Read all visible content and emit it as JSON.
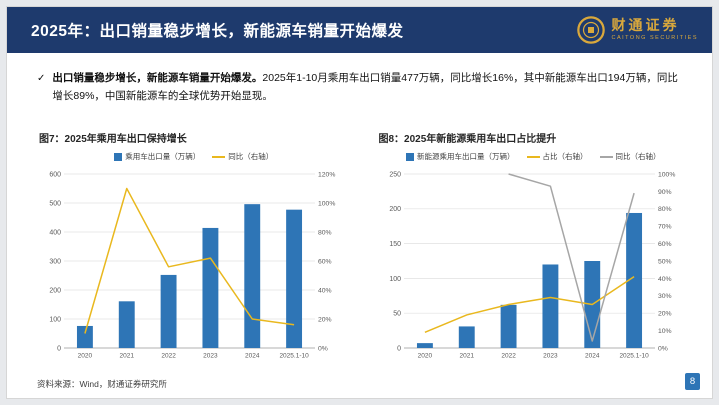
{
  "header": {
    "title": "2025年：出口销量稳步增长，新能源车销量开始爆发",
    "logo": {
      "cn": "财通证券",
      "en": "CAITONG SECURITIES"
    }
  },
  "bullet": {
    "marker": "✓",
    "bold": "出口销量稳步增长，新能源车销量开始爆发。",
    "text": "2025年1-10月乘用车出口销量477万辆，同比增长16%，其中新能源车出口194万辆，同比增长89%，中国新能源车的全球优势开始显现。"
  },
  "footer": {
    "source": "资料来源：Wind，财通证券研究所",
    "page": "8"
  },
  "colors": {
    "header_bg": "#1e3a6d",
    "bar_blue": "#2e75b6",
    "line_yellow": "#e9b81e",
    "line_gray": "#a6a6a6",
    "logo_gold": "#d9a83c"
  },
  "chart_data": [
    {
      "type": "bar",
      "title": "图7：2025年乘用车出口保持增长",
      "categories": [
        "2020",
        "2021",
        "2022",
        "2023",
        "2024",
        "2025.1-10"
      ],
      "series": [
        {
          "name": "乘用车出口量（万辆）",
          "type": "bar",
          "axis": "left",
          "color": "#2e75b6",
          "values": [
            76,
            161,
            252,
            414,
            496,
            477
          ]
        },
        {
          "name": "同比（右轴）",
          "type": "line",
          "axis": "right",
          "color": "#e9b81e",
          "values": [
            10,
            110,
            56,
            62,
            20,
            16
          ]
        }
      ],
      "left_axis": {
        "min": 0,
        "max": 600,
        "step": 100,
        "ticks": [
          0,
          100,
          200,
          300,
          400,
          500,
          600
        ]
      },
      "right_axis": {
        "min": 0,
        "max": 120,
        "step": 20,
        "ticks": [
          "0%",
          "20%",
          "40%",
          "60%",
          "80%",
          "100%",
          "120%"
        ]
      },
      "grid": true,
      "legend_position": "top"
    },
    {
      "type": "bar",
      "title": "图8：2025年新能源乘用车出口占比提升",
      "categories": [
        "2020",
        "2021",
        "2022",
        "2023",
        "2024",
        "2025.1-10"
      ],
      "series": [
        {
          "name": "新能源乘用车出口量（万辆）",
          "type": "bar",
          "axis": "left",
          "color": "#2e75b6",
          "values": [
            7,
            31,
            62,
            120,
            125,
            194
          ]
        },
        {
          "name": "占比（右轴）",
          "type": "line",
          "axis": "right",
          "color": "#e9b81e",
          "values": [
            9,
            19,
            25,
            29,
            25,
            41
          ]
        },
        {
          "name": "同比（右轴）",
          "type": "line",
          "axis": "right",
          "color": "#a6a6a6",
          "values": [
            null,
            null,
            100,
            93,
            4,
            89
          ]
        }
      ],
      "left_axis": {
        "min": 0,
        "max": 250,
        "step": 50,
        "ticks": [
          0,
          50,
          100,
          150,
          200,
          250
        ]
      },
      "right_axis": {
        "min": 0,
        "max": 100,
        "step": 10,
        "ticks": [
          "0%",
          "10%",
          "20%",
          "30%",
          "40%",
          "50%",
          "60%",
          "70%",
          "80%",
          "90%",
          "100%"
        ]
      },
      "grid": true,
      "legend_position": "top"
    }
  ]
}
